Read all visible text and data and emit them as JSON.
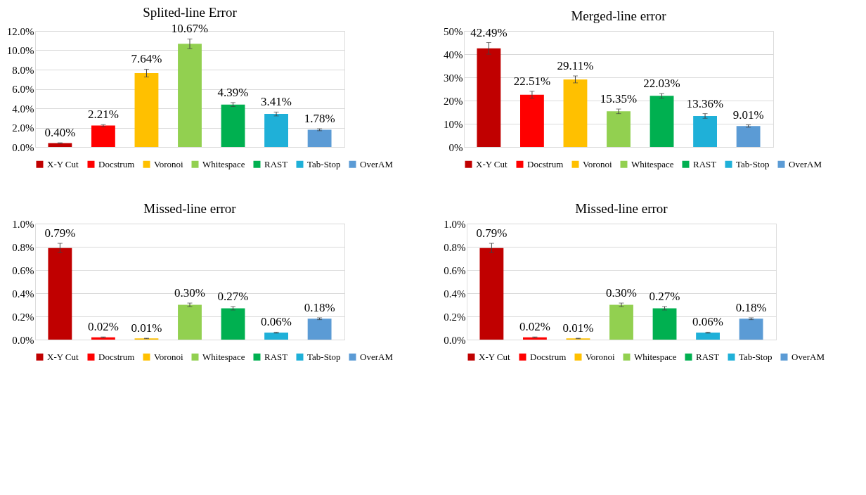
{
  "chart_data": [
    {
      "type": "bar",
      "title": "Splited-line Error",
      "categories": [
        null,
        null,
        null,
        null,
        null,
        null,
        null
      ],
      "ylim": [
        0,
        12
      ],
      "yticks": [
        {
          "value": 0,
          "label": "0.0%"
        },
        {
          "value": 2,
          "label": "2.0%"
        },
        {
          "value": 4,
          "label": "4.0%"
        },
        {
          "value": 6,
          "label": "6.0%"
        },
        {
          "value": 8,
          "label": "8.0%"
        },
        {
          "value": 10,
          "label": "10.0%"
        },
        {
          "value": 12,
          "label": "12.0%"
        }
      ],
      "grid": "y",
      "legend": "bottom",
      "tick_labels": "y",
      "series": [
        {
          "name": "X-Y Cut",
          "color": "#c00000",
          "values": [
            0.4,
            null,
            null,
            null,
            null,
            null,
            null
          ],
          "errors": [
            0.03,
            null,
            null,
            null,
            null,
            null,
            null
          ],
          "value_labels": [
            "0.40%",
            null,
            null,
            null,
            null,
            null,
            null
          ]
        },
        {
          "name": "Docstrum",
          "color": "#ff0000",
          "values": [
            null,
            2.21,
            null,
            null,
            null,
            null,
            null
          ],
          "errors": [
            null,
            0.1,
            null,
            null,
            null,
            null,
            null
          ],
          "value_labels": [
            null,
            "2.21%",
            null,
            null,
            null,
            null,
            null
          ]
        },
        {
          "name": "Voronoi",
          "color": "#ffc000",
          "values": [
            null,
            null,
            7.64,
            null,
            null,
            null,
            null
          ],
          "errors": [
            null,
            null,
            0.4,
            null,
            null,
            null,
            null
          ],
          "value_labels": [
            null,
            null,
            "7.64%",
            null,
            null,
            null,
            null
          ]
        },
        {
          "name": "Whitespace",
          "color": "#92d050",
          "values": [
            null,
            null,
            null,
            10.67,
            null,
            null,
            null
          ],
          "errors": [
            null,
            null,
            null,
            0.5,
            null,
            null,
            null
          ],
          "value_labels": [
            null,
            null,
            null,
            "10.67%",
            null,
            null,
            null
          ]
        },
        {
          "name": "RAST",
          "color": "#00b050",
          "values": [
            null,
            null,
            null,
            null,
            4.39,
            null,
            null
          ],
          "errors": [
            null,
            null,
            null,
            null,
            0.2,
            null,
            null
          ],
          "value_labels": [
            null,
            null,
            null,
            null,
            "4.39%",
            null,
            null
          ]
        },
        {
          "name": "Tab-Stop",
          "color": "#1fb0d8",
          "values": [
            null,
            null,
            null,
            null,
            null,
            3.41,
            null
          ],
          "errors": [
            null,
            null,
            null,
            null,
            null,
            0.2,
            null
          ],
          "value_labels": [
            null,
            null,
            null,
            null,
            null,
            "3.41%",
            null
          ]
        },
        {
          "name": "OverAM",
          "color": "#5b9bd5",
          "values": [
            null,
            null,
            null,
            null,
            null,
            null,
            1.78
          ],
          "errors": [
            null,
            null,
            null,
            null,
            null,
            null,
            0.1
          ],
          "value_labels": [
            null,
            null,
            null,
            null,
            null,
            null,
            "1.78%"
          ]
        }
      ]
    },
    {
      "type": "bar",
      "title": "Merged-line error",
      "categories": [
        null,
        null,
        null,
        null,
        null,
        null,
        null
      ],
      "ylim": [
        0,
        50
      ],
      "yticks": [
        {
          "value": 0,
          "label": "0%"
        },
        {
          "value": 10,
          "label": "10%"
        },
        {
          "value": 20,
          "label": "20%"
        },
        {
          "value": 30,
          "label": "30%"
        },
        {
          "value": 40,
          "label": "40%"
        },
        {
          "value": 50,
          "label": "50%"
        }
      ],
      "grid": "y",
      "legend": "bottom",
      "tick_labels": "y",
      "series": [
        {
          "name": "X-Y Cut",
          "color": "#c00000",
          "values": [
            42.49,
            null,
            null,
            null,
            null,
            null,
            null
          ],
          "errors": [
            2.5,
            null,
            null,
            null,
            null,
            null,
            null
          ],
          "value_labels": [
            "42.49%",
            null,
            null,
            null,
            null,
            null,
            null
          ]
        },
        {
          "name": "Docstrum",
          "color": "#ff0000",
          "values": [
            null,
            22.51,
            null,
            null,
            null,
            null,
            null
          ],
          "errors": [
            null,
            1.5,
            null,
            null,
            null,
            null,
            null
          ],
          "value_labels": [
            null,
            "22.51%",
            null,
            null,
            null,
            null,
            null
          ]
        },
        {
          "name": "Voronoi",
          "color": "#ffc000",
          "values": [
            null,
            null,
            29.11,
            null,
            null,
            null,
            null
          ],
          "errors": [
            null,
            null,
            1.5,
            null,
            null,
            null,
            null
          ],
          "value_labels": [
            null,
            null,
            "29.11%",
            null,
            null,
            null,
            null
          ]
        },
        {
          "name": "Whitespace",
          "color": "#92d050",
          "values": [
            null,
            null,
            null,
            15.35,
            null,
            null,
            null
          ],
          "errors": [
            null,
            null,
            null,
            1.0,
            null,
            null,
            null
          ],
          "value_labels": [
            null,
            null,
            null,
            "15.35%",
            null,
            null,
            null
          ]
        },
        {
          "name": "RAST",
          "color": "#00b050",
          "values": [
            null,
            null,
            null,
            null,
            22.03,
            null,
            null
          ],
          "errors": [
            null,
            null,
            null,
            null,
            1.0,
            null,
            null
          ],
          "value_labels": [
            null,
            null,
            null,
            null,
            "22.03%",
            null,
            null
          ]
        },
        {
          "name": "Tab-Stop",
          "color": "#1fb0d8",
          "values": [
            null,
            null,
            null,
            null,
            null,
            13.36,
            null
          ],
          "errors": [
            null,
            null,
            null,
            null,
            null,
            1.0,
            null
          ],
          "value_labels": [
            null,
            null,
            null,
            null,
            null,
            "13.36%",
            null
          ]
        },
        {
          "name": "OverAM",
          "color": "#5b9bd5",
          "values": [
            null,
            null,
            null,
            null,
            null,
            null,
            9.01
          ],
          "errors": [
            null,
            null,
            null,
            null,
            null,
            null,
            0.5
          ],
          "value_labels": [
            null,
            null,
            null,
            null,
            null,
            null,
            "9.01%"
          ]
        }
      ]
    },
    {
      "type": "bar",
      "title": "Missed-line error",
      "categories": [
        null,
        null,
        null,
        null,
        null,
        null,
        null
      ],
      "ylim": [
        0,
        1.0
      ],
      "yticks": [
        {
          "value": 0,
          "label": "0.0%"
        },
        {
          "value": 0.2,
          "label": "0.2%"
        },
        {
          "value": 0.4,
          "label": "0.4%"
        },
        {
          "value": 0.6,
          "label": "0.6%"
        },
        {
          "value": 0.8,
          "label": "0.8%"
        },
        {
          "value": 1.0,
          "label": "1.0%"
        }
      ],
      "grid": "y",
      "legend": "bottom",
      "tick_labels": "y",
      "series": [
        {
          "name": "X-Y Cut",
          "color": "#c00000",
          "values": [
            0.79,
            null,
            null,
            null,
            null,
            null,
            null
          ],
          "errors": [
            0.04,
            null,
            null,
            null,
            null,
            null,
            null
          ],
          "value_labels": [
            "0.79%",
            null,
            null,
            null,
            null,
            null,
            null
          ]
        },
        {
          "name": "Docstrum",
          "color": "#ff0000",
          "values": [
            null,
            0.02,
            null,
            null,
            null,
            null,
            null
          ],
          "errors": [
            null,
            0.003,
            null,
            null,
            null,
            null,
            null
          ],
          "value_labels": [
            null,
            "0.02%",
            null,
            null,
            null,
            null,
            null
          ]
        },
        {
          "name": "Voronoi",
          "color": "#ffc000",
          "values": [
            null,
            null,
            0.01,
            null,
            null,
            null,
            null
          ],
          "errors": [
            null,
            null,
            0.002,
            null,
            null,
            null,
            null
          ],
          "value_labels": [
            null,
            null,
            "0.01%",
            null,
            null,
            null,
            null
          ]
        },
        {
          "name": "Whitespace",
          "color": "#92d050",
          "values": [
            null,
            null,
            null,
            0.3,
            null,
            null,
            null
          ],
          "errors": [
            null,
            null,
            null,
            0.015,
            null,
            null,
            null
          ],
          "value_labels": [
            null,
            null,
            null,
            "0.30%",
            null,
            null,
            null
          ]
        },
        {
          "name": "RAST",
          "color": "#00b050",
          "values": [
            null,
            null,
            null,
            null,
            0.27,
            null,
            null
          ],
          "errors": [
            null,
            null,
            null,
            null,
            0.015,
            null,
            null
          ],
          "value_labels": [
            null,
            null,
            null,
            null,
            "0.27%",
            null,
            null
          ]
        },
        {
          "name": "Tab-Stop",
          "color": "#1fb0d8",
          "values": [
            null,
            null,
            null,
            null,
            null,
            0.06,
            null
          ],
          "errors": [
            null,
            null,
            null,
            null,
            null,
            0.004,
            null
          ],
          "value_labels": [
            null,
            null,
            null,
            null,
            null,
            "0.06%",
            null
          ]
        },
        {
          "name": "OverAM",
          "color": "#5b9bd5",
          "values": [
            null,
            null,
            null,
            null,
            null,
            null,
            0.18
          ],
          "errors": [
            null,
            null,
            null,
            null,
            null,
            null,
            0.008
          ],
          "value_labels": [
            null,
            null,
            null,
            null,
            null,
            null,
            "0.18%"
          ]
        }
      ]
    },
    {
      "type": "bar",
      "title": "Missed-line error",
      "categories": [
        null,
        null,
        null,
        null,
        null,
        null,
        null
      ],
      "ylim": [
        0,
        1.0
      ],
      "yticks": [
        {
          "value": 0,
          "label": "0.0%"
        },
        {
          "value": 0.2,
          "label": "0.2%"
        },
        {
          "value": 0.4,
          "label": "0.4%"
        },
        {
          "value": 0.6,
          "label": "0.6%"
        },
        {
          "value": 0.8,
          "label": "0.8%"
        },
        {
          "value": 1.0,
          "label": "1.0%"
        }
      ],
      "grid": "y",
      "legend": "bottom",
      "tick_labels": "y",
      "series": [
        {
          "name": "X-Y Cut",
          "color": "#c00000",
          "values": [
            0.79,
            null,
            null,
            null,
            null,
            null,
            null
          ],
          "errors": [
            0.04,
            null,
            null,
            null,
            null,
            null,
            null
          ],
          "value_labels": [
            "0.79%",
            null,
            null,
            null,
            null,
            null,
            null
          ]
        },
        {
          "name": "Docstrum",
          "color": "#ff0000",
          "values": [
            null,
            0.02,
            null,
            null,
            null,
            null,
            null
          ],
          "errors": [
            null,
            0.003,
            null,
            null,
            null,
            null,
            null
          ],
          "value_labels": [
            null,
            "0.02%",
            null,
            null,
            null,
            null,
            null
          ]
        },
        {
          "name": "Voronoi",
          "color": "#ffc000",
          "values": [
            null,
            null,
            0.01,
            null,
            null,
            null,
            null
          ],
          "errors": [
            null,
            null,
            0.002,
            null,
            null,
            null,
            null
          ],
          "value_labels": [
            null,
            null,
            "0.01%",
            null,
            null,
            null,
            null
          ]
        },
        {
          "name": "Whitespace",
          "color": "#92d050",
          "values": [
            null,
            null,
            null,
            0.3,
            null,
            null,
            null
          ],
          "errors": [
            null,
            null,
            null,
            0.015,
            null,
            null,
            null
          ],
          "value_labels": [
            null,
            null,
            null,
            "0.30%",
            null,
            null,
            null
          ]
        },
        {
          "name": "RAST",
          "color": "#00b050",
          "values": [
            null,
            null,
            null,
            null,
            0.27,
            null,
            null
          ],
          "errors": [
            null,
            null,
            null,
            null,
            0.015,
            null,
            null
          ],
          "value_labels": [
            null,
            null,
            null,
            null,
            "0.27%",
            null,
            null
          ]
        },
        {
          "name": "Tab-Stop",
          "color": "#1fb0d8",
          "values": [
            null,
            null,
            null,
            null,
            null,
            0.06,
            null
          ],
          "errors": [
            null,
            null,
            null,
            null,
            null,
            0.004,
            null
          ],
          "value_labels": [
            null,
            null,
            null,
            null,
            null,
            "0.06%",
            null
          ]
        },
        {
          "name": "OverAM",
          "color": "#5b9bd5",
          "values": [
            null,
            null,
            null,
            null,
            null,
            null,
            0.18
          ],
          "errors": [
            null,
            null,
            null,
            null,
            null,
            null,
            0.008
          ],
          "value_labels": [
            null,
            null,
            null,
            null,
            null,
            null,
            "0.18%"
          ]
        }
      ]
    }
  ]
}
